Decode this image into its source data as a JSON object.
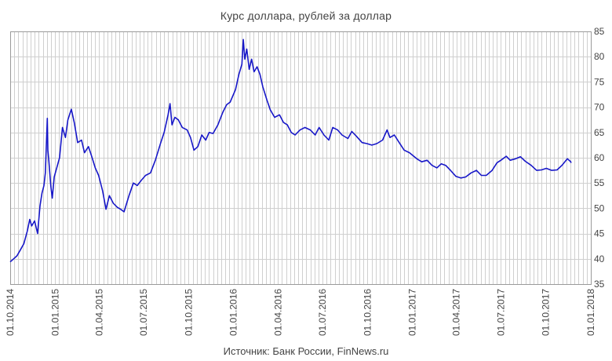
{
  "chart_data": {
    "type": "line",
    "title": "Курс доллара,  рублей  за доллар",
    "source": "Источник: Банк России, FinNews.ru",
    "xlabel": "",
    "ylabel": "",
    "x_range": [
      "2014-10-01",
      "2018-01-01"
    ],
    "ylim": [
      35,
      85
    ],
    "grid": true,
    "y_ticks": [
      35,
      40,
      45,
      50,
      55,
      60,
      65,
      70,
      75,
      80,
      85
    ],
    "x_ticks": [
      "01.10.2014",
      "01.01.2015",
      "01.04.2015",
      "01.07.2015",
      "01.10.2015",
      "01.01.2016",
      "01.04.2016",
      "01.07.2016",
      "01.10.2016",
      "01.01.2017",
      "01.04.2017",
      "01.07.2017",
      "01.10.2017",
      "01.01.2018"
    ],
    "series": [
      {
        "color": "#1717c8",
        "points": [
          [
            "2014-10-01",
            39.4
          ],
          [
            "2014-10-08",
            40.0
          ],
          [
            "2014-10-15",
            40.6
          ],
          [
            "2014-10-22",
            41.8
          ],
          [
            "2014-10-29",
            43.0
          ],
          [
            "2014-11-05",
            45.5
          ],
          [
            "2014-11-10",
            47.8
          ],
          [
            "2014-11-14",
            46.5
          ],
          [
            "2014-11-20",
            47.5
          ],
          [
            "2014-11-26",
            45.0
          ],
          [
            "2014-12-01",
            50.5
          ],
          [
            "2014-12-05",
            53.0
          ],
          [
            "2014-12-09",
            54.5
          ],
          [
            "2014-12-12",
            57.0
          ],
          [
            "2014-12-16",
            67.8
          ],
          [
            "2014-12-17",
            61.5
          ],
          [
            "2014-12-19",
            59.5
          ],
          [
            "2014-12-23",
            54.5
          ],
          [
            "2014-12-26",
            52.0
          ],
          [
            "2014-12-30",
            56.2
          ],
          [
            "2015-01-10",
            60.0
          ],
          [
            "2015-01-16",
            66.0
          ],
          [
            "2015-01-22",
            64.0
          ],
          [
            "2015-01-27",
            67.5
          ],
          [
            "2015-02-03",
            69.6
          ],
          [
            "2015-02-09",
            67.0
          ],
          [
            "2015-02-16",
            63.0
          ],
          [
            "2015-02-24",
            63.5
          ],
          [
            "2015-03-02",
            61.0
          ],
          [
            "2015-03-10",
            62.2
          ],
          [
            "2015-03-16",
            60.5
          ],
          [
            "2015-03-24",
            58.0
          ],
          [
            "2015-03-31",
            56.5
          ],
          [
            "2015-04-08",
            53.5
          ],
          [
            "2015-04-15",
            49.8
          ],
          [
            "2015-04-22",
            52.5
          ],
          [
            "2015-04-30",
            51.0
          ],
          [
            "2015-05-08",
            50.2
          ],
          [
            "2015-05-15",
            49.8
          ],
          [
            "2015-05-22",
            49.3
          ],
          [
            "2015-06-01",
            52.5
          ],
          [
            "2015-06-10",
            55.0
          ],
          [
            "2015-06-18",
            54.5
          ],
          [
            "2015-06-26",
            55.5
          ],
          [
            "2015-07-05",
            56.5
          ],
          [
            "2015-07-15",
            57.0
          ],
          [
            "2015-07-25",
            59.5
          ],
          [
            "2015-08-05",
            63.0
          ],
          [
            "2015-08-12",
            65.0
          ],
          [
            "2015-08-20",
            68.5
          ],
          [
            "2015-08-24",
            70.7
          ],
          [
            "2015-08-28",
            66.5
          ],
          [
            "2015-09-03",
            68.0
          ],
          [
            "2015-09-10",
            67.5
          ],
          [
            "2015-09-18",
            66.0
          ],
          [
            "2015-09-28",
            65.5
          ],
          [
            "2015-10-05",
            64.0
          ],
          [
            "2015-10-12",
            61.5
          ],
          [
            "2015-10-20",
            62.2
          ],
          [
            "2015-10-28",
            64.5
          ],
          [
            "2015-11-05",
            63.5
          ],
          [
            "2015-11-12",
            65.0
          ],
          [
            "2015-11-20",
            64.8
          ],
          [
            "2015-11-30",
            66.5
          ],
          [
            "2015-12-10",
            69.0
          ],
          [
            "2015-12-18",
            70.5
          ],
          [
            "2015-12-25",
            71.0
          ],
          [
            "2016-01-05",
            73.5
          ],
          [
            "2016-01-12",
            76.5
          ],
          [
            "2016-01-18",
            78.5
          ],
          [
            "2016-01-21",
            83.4
          ],
          [
            "2016-01-24",
            79.5
          ],
          [
            "2016-01-28",
            81.5
          ],
          [
            "2016-02-02",
            77.5
          ],
          [
            "2016-02-07",
            79.5
          ],
          [
            "2016-02-12",
            77.0
          ],
          [
            "2016-02-18",
            78.0
          ],
          [
            "2016-02-24",
            76.5
          ],
          [
            "2016-03-01",
            74.0
          ],
          [
            "2016-03-09",
            71.5
          ],
          [
            "2016-03-16",
            69.5
          ],
          [
            "2016-03-25",
            68.0
          ],
          [
            "2016-04-04",
            68.5
          ],
          [
            "2016-04-12",
            67.0
          ],
          [
            "2016-04-20",
            66.5
          ],
          [
            "2016-04-28",
            65.0
          ],
          [
            "2016-05-06",
            64.5
          ],
          [
            "2016-05-16",
            65.5
          ],
          [
            "2016-05-26",
            66.0
          ],
          [
            "2016-06-06",
            65.5
          ],
          [
            "2016-06-16",
            64.5
          ],
          [
            "2016-06-24",
            66.0
          ],
          [
            "2016-07-04",
            64.5
          ],
          [
            "2016-07-14",
            63.5
          ],
          [
            "2016-07-22",
            66.0
          ],
          [
            "2016-08-01",
            65.5
          ],
          [
            "2016-08-10",
            64.5
          ],
          [
            "2016-08-22",
            63.8
          ],
          [
            "2016-08-30",
            65.2
          ],
          [
            "2016-09-08",
            64.3
          ],
          [
            "2016-09-20",
            63.0
          ],
          [
            "2016-09-30",
            62.8
          ],
          [
            "2016-10-10",
            62.5
          ],
          [
            "2016-10-20",
            62.8
          ],
          [
            "2016-11-01",
            63.5
          ],
          [
            "2016-11-10",
            65.5
          ],
          [
            "2016-11-16",
            64.0
          ],
          [
            "2016-11-25",
            64.5
          ],
          [
            "2016-12-05",
            63.0
          ],
          [
            "2016-12-15",
            61.5
          ],
          [
            "2016-12-26",
            61.0
          ],
          [
            "2017-01-10",
            59.8
          ],
          [
            "2017-01-20",
            59.2
          ],
          [
            "2017-01-31",
            59.5
          ],
          [
            "2017-02-10",
            58.5
          ],
          [
            "2017-02-20",
            58.0
          ],
          [
            "2017-03-01",
            58.8
          ],
          [
            "2017-03-10",
            58.5
          ],
          [
            "2017-03-20",
            57.5
          ],
          [
            "2017-03-31",
            56.3
          ],
          [
            "2017-04-10",
            56.0
          ],
          [
            "2017-04-20",
            56.2
          ],
          [
            "2017-05-01",
            57.0
          ],
          [
            "2017-05-12",
            57.5
          ],
          [
            "2017-05-22",
            56.5
          ],
          [
            "2017-06-01",
            56.5
          ],
          [
            "2017-06-13",
            57.5
          ],
          [
            "2017-06-23",
            59.0
          ],
          [
            "2017-07-01",
            59.5
          ],
          [
            "2017-07-12",
            60.3
          ],
          [
            "2017-07-20",
            59.5
          ],
          [
            "2017-07-31",
            59.8
          ],
          [
            "2017-08-10",
            60.2
          ],
          [
            "2017-08-20",
            59.3
          ],
          [
            "2017-09-01",
            58.5
          ],
          [
            "2017-09-12",
            57.5
          ],
          [
            "2017-09-22",
            57.6
          ],
          [
            "2017-10-02",
            57.9
          ],
          [
            "2017-10-13",
            57.5
          ],
          [
            "2017-10-24",
            57.6
          ],
          [
            "2017-11-03",
            58.5
          ],
          [
            "2017-11-14",
            59.8
          ],
          [
            "2017-11-20",
            59.3
          ],
          [
            "2017-11-22",
            59.0
          ]
        ]
      }
    ]
  }
}
